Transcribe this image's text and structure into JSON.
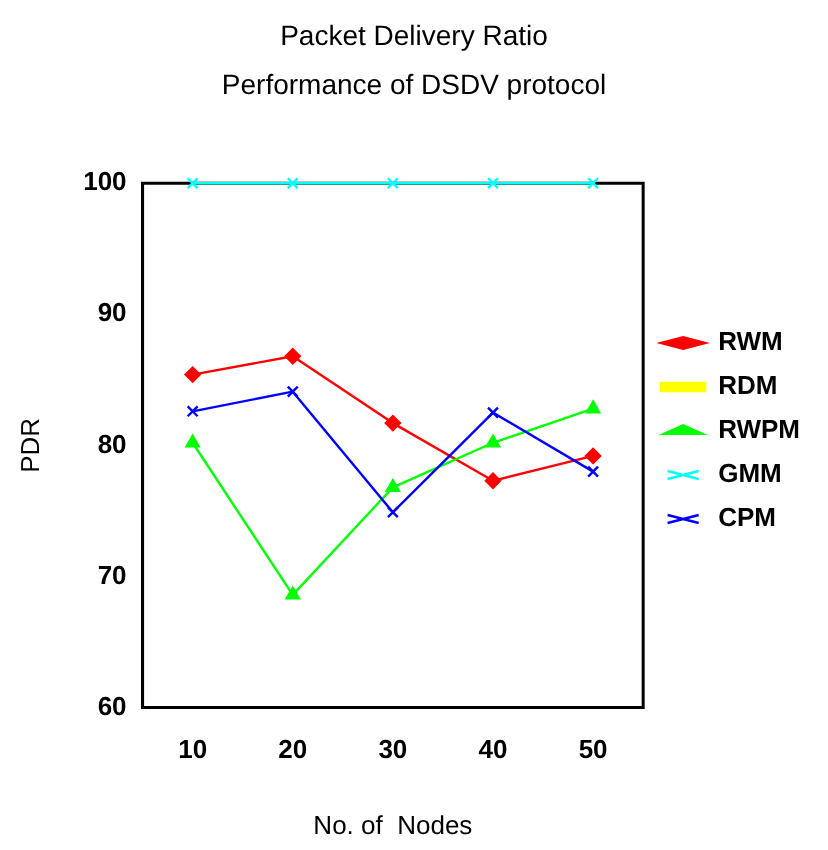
{
  "chart_data": {
    "type": "line",
    "title": "Packet Delivery Ratio",
    "subtitle": "Performance of DSDV protocol",
    "xlabel": "No. of  Nodes",
    "ylabel": "PDR",
    "categories": [
      "10",
      "20",
      "30",
      "40",
      "50"
    ],
    "series": [
      {
        "name": "RWM",
        "color": "#ff0000",
        "marker": "diamond",
        "values": [
          85.4,
          86.8,
          81.7,
          77.3,
          79.2
        ]
      },
      {
        "name": "RDM",
        "color": "#ffff00",
        "marker": "square",
        "values": [
          null,
          null,
          null,
          null,
          null
        ]
      },
      {
        "name": "RWPM",
        "color": "#00ff00",
        "marker": "triangle",
        "values": [
          80.2,
          68.6,
          76.8,
          80.2,
          82.8
        ]
      },
      {
        "name": "GMM",
        "color": "#00ffff",
        "marker": "cross",
        "values": [
          100,
          100,
          100,
          100,
          100
        ]
      },
      {
        "name": "CPM",
        "color": "#0000ff",
        "marker": "cross",
        "values": [
          82.6,
          84.1,
          74.9,
          82.5,
          78.0
        ]
      }
    ],
    "ylim": [
      60,
      100
    ],
    "yticks": [
      60,
      70,
      80,
      90,
      100
    ],
    "grid": false,
    "legend": "right"
  }
}
